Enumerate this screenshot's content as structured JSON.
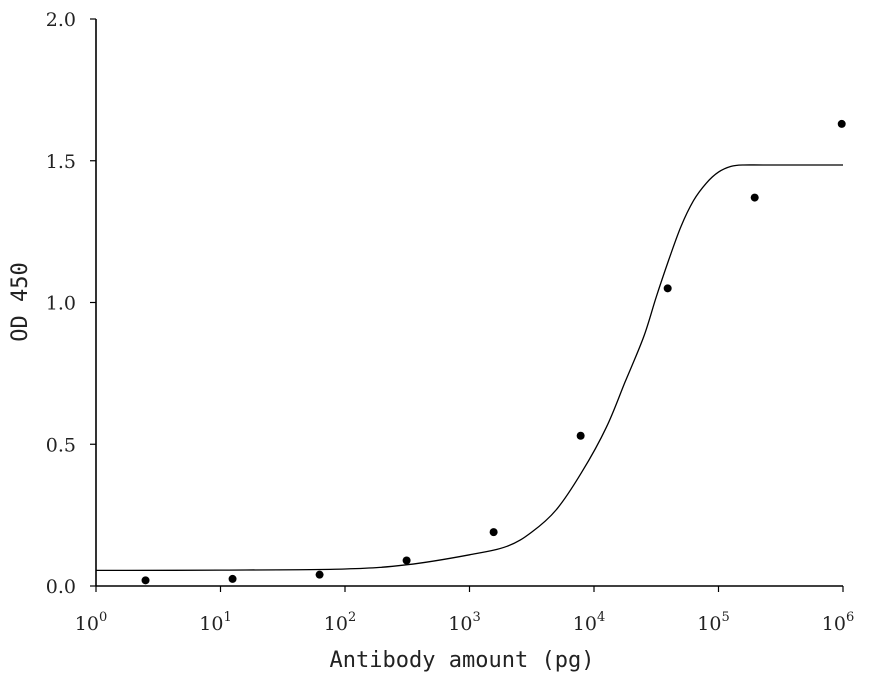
{
  "chart_data": {
    "type": "scatter",
    "xlabel": "Antibody amount  (pg)",
    "ylabel": "OD 450",
    "xscale": "log10",
    "xlim": [
      1,
      1000000
    ],
    "ylim": [
      0.0,
      2.0
    ],
    "grid": false,
    "legend": "none",
    "x_ticks": [
      {
        "value": 1,
        "base": "10",
        "exp": "0"
      },
      {
        "value": 10,
        "base": "10",
        "exp": "1"
      },
      {
        "value": 100,
        "base": "10",
        "exp": "2"
      },
      {
        "value": 1000,
        "base": "10",
        "exp": "3"
      },
      {
        "value": 10000,
        "base": "10",
        "exp": "4"
      },
      {
        "value": 100000,
        "base": "10",
        "exp": "5"
      },
      {
        "value": 1000000,
        "base": "10",
        "exp": "6"
      }
    ],
    "y_ticks": [
      {
        "value": 0.0,
        "label": "0.0"
      },
      {
        "value": 0.5,
        "label": "0.5"
      },
      {
        "value": 1.0,
        "label": "1.0"
      },
      {
        "value": 1.5,
        "label": "1.5"
      },
      {
        "value": 2.0,
        "label": "2.0"
      }
    ],
    "series": [
      {
        "kind": "points",
        "x": [
          2.5,
          12.5,
          62.5,
          312.5,
          1562.5,
          7812.5,
          39062.5,
          195312.5,
          976562.5
        ],
        "y": [
          0.02,
          0.025,
          0.04,
          0.09,
          0.19,
          0.53,
          1.05,
          1.37,
          1.63
        ]
      },
      {
        "kind": "fit-line",
        "x": [
          1,
          10,
          100,
          316,
          1000,
          2000,
          3162,
          5000,
          7943,
          12589,
          17783,
          25119,
          31623,
          39811,
          50119,
          63096,
          79433,
          100000,
          125893,
          158489,
          251189,
          1000000
        ],
        "y": [
          0.055,
          0.056,
          0.06,
          0.075,
          0.11,
          0.14,
          0.19,
          0.27,
          0.4,
          0.56,
          0.72,
          0.88,
          1.02,
          1.15,
          1.27,
          1.36,
          1.42,
          1.46,
          1.48,
          1.485,
          1.485,
          1.485
        ]
      }
    ]
  },
  "colors": {
    "ink": "#000000",
    "background": "#ffffff"
  }
}
